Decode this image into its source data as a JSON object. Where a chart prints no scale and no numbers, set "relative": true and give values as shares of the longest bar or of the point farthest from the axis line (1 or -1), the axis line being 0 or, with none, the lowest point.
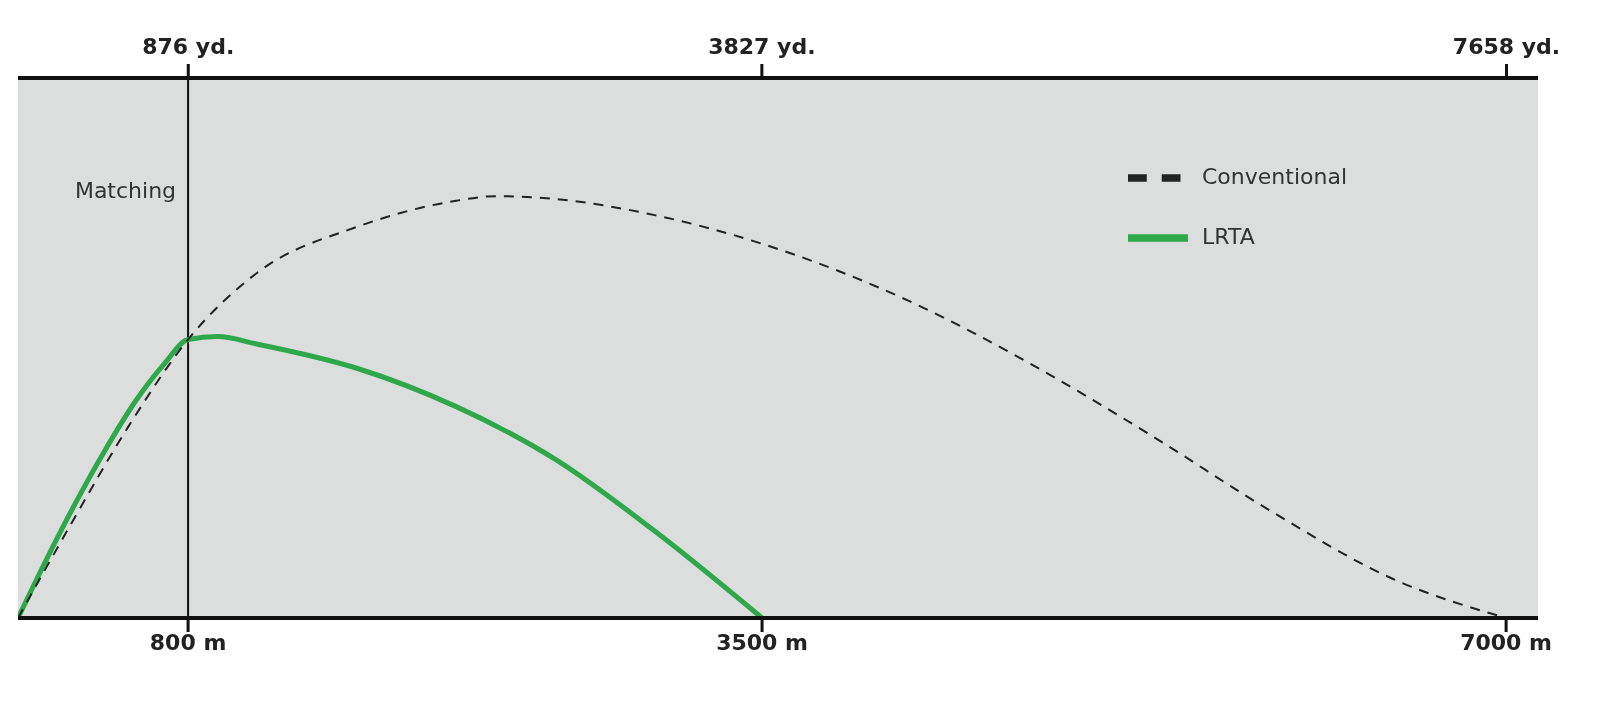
{
  "chart_data": {
    "type": "line",
    "relative": true,
    "xlim": [
      0,
      7150
    ],
    "xticks": [
      {
        "value": 800,
        "label": "800 m"
      },
      {
        "value": 3500,
        "label": "3500 m"
      },
      {
        "value": 7000,
        "label": "7000 m"
      }
    ],
    "x2lim": [
      0,
      7820
    ],
    "x2ticks": [
      {
        "value": 876,
        "label": "876 yd."
      },
      {
        "value": 3827,
        "label": "3827 yd."
      },
      {
        "value": 7658,
        "label": "7658 yd."
      }
    ],
    "series": [
      {
        "name": "LRTA",
        "color": "#2ea84a",
        "line_style": "solid",
        "x": [
          0,
          133,
          272,
          411,
          550,
          689,
          800,
          940,
          1127,
          1594,
          2061,
          2528,
          2995,
          3500
        ],
        "values": [
          0,
          0.138,
          0.274,
          0.399,
          0.512,
          0.603,
          0.66,
          0.667,
          0.649,
          0.592,
          0.501,
          0.376,
          0.206,
          0
        ]
      },
      {
        "name": "Conventional",
        "color": "#222222",
        "line_style": "dashed",
        "x": [
          0,
          244,
          522,
          800,
          1127,
          1594,
          2061,
          2248,
          2528,
          2995,
          3500,
          4193,
          4761,
          5330,
          5898,
          6466,
          7000
        ],
        "values": [
          0,
          0.218,
          0.456,
          0.66,
          0.819,
          0.927,
          0.989,
          1,
          0.993,
          0.955,
          0.887,
          0.751,
          0.603,
          0.433,
          0.252,
          0.093,
          0
        ]
      }
    ],
    "ref_lines": [
      {
        "axis": "x",
        "value": 800,
        "label": "Matching",
        "color": "#111111"
      }
    ],
    "legend": "top right"
  }
}
